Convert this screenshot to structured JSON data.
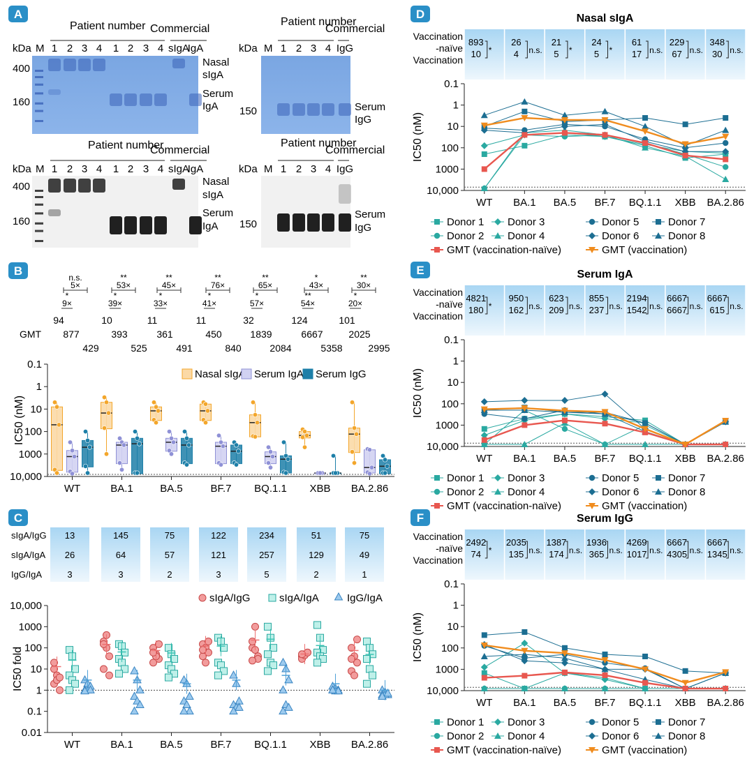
{
  "panel_labels": {
    "A": "A",
    "B": "B",
    "C": "C",
    "D": "D",
    "E": "E",
    "F": "F"
  },
  "gels": {
    "patient_number": "Patient number",
    "commercial": "Commercial",
    "kda": "kDa",
    "marker": "M",
    "lanes_iga": [
      "1",
      "2",
      "3",
      "4",
      "1",
      "2",
      "3",
      "4",
      "sIgA",
      "IgA"
    ],
    "lanes_igg": [
      "1",
      "2",
      "3",
      "4",
      "IgG"
    ],
    "mw_iga": [
      "400",
      "160"
    ],
    "mw_igg": [
      "150"
    ],
    "band_labels_iga": [
      "Nasal",
      "sIgA",
      "Serum",
      "IgA"
    ],
    "band_labels_igg": [
      "Serum",
      "IgG"
    ]
  },
  "colors": {
    "nasal": "#f3a62b",
    "serum_iga": "#8f91d6",
    "serum_igg": "#1d7fa8",
    "gel_blue": "#7fa9e0",
    "gel_dark": "#141414",
    "donor_a": "#2aa9a1",
    "donor_b": "#1c6e92",
    "gmt_naive": "#e8574f",
    "gmt_vacc": "#f08c1e",
    "ratio_red": "#ee7070",
    "ratio_teal": "#3cc4b4",
    "ratio_blue": "#4fa1d8"
  },
  "variants": [
    "WT",
    "BA.1",
    "BA.5",
    "BF.7",
    "BQ.1.1",
    "XBB",
    "BA.2.86"
  ],
  "panel_b": {
    "gmt_label": "GMT",
    "top_ratio": [
      "5×",
      "53×",
      "45×",
      "76×",
      "65×",
      "43×",
      "30×"
    ],
    "top_sig": [
      "n.s.",
      "**",
      "**",
      "**",
      "**",
      "*",
      "**"
    ],
    "bottom_ratio": [
      "9×",
      "39×",
      "33×",
      "41×",
      "57×",
      "54×",
      "20×"
    ],
    "bottom_sig": [
      "*",
      "*",
      "*",
      "*",
      "*",
      "**",
      "*"
    ],
    "gmt_nasal": [
      "94",
      "10",
      "11",
      "11",
      "32",
      "124",
      "101"
    ],
    "gmt_iga": [
      "877",
      "393",
      "361",
      "450",
      "1839",
      "6667",
      "2025"
    ],
    "gmt_igg": [
      "429",
      "525",
      "491",
      "840",
      "2084",
      "5358",
      "2995"
    ],
    "ylabel": "IC50 (nM)",
    "ticks": [
      "0.1",
      "1",
      "10",
      "100",
      "1000",
      "10,000"
    ],
    "legend": [
      "Nasal sIgA",
      "Serum IgA",
      "Serum IgG"
    ]
  },
  "panel_c": {
    "row_labels": [
      "sIgA/IgG",
      "sIgA/IgA",
      "IgG/IgA"
    ],
    "values": [
      [
        "13",
        "145",
        "75",
        "122",
        "234",
        "51",
        "75"
      ],
      [
        "26",
        "64",
        "57",
        "121",
        "257",
        "129",
        "49"
      ],
      [
        "3",
        "3",
        "2",
        "3",
        "5",
        "2",
        "1"
      ]
    ],
    "ylabel": "IC50 fold",
    "ticks": [
      "10,000",
      "1000",
      "100",
      "10",
      "1",
      "0.1",
      "0.01"
    ],
    "legend": [
      "sIgA/IgG",
      "sIgA/IgA",
      "IgG/IgA"
    ]
  },
  "chart_data": [
    {
      "type": "box",
      "title": "",
      "categories": [
        "WT",
        "BA.1",
        "BA.5",
        "BF.7",
        "BQ.1.1",
        "XBB",
        "BA.2.86"
      ],
      "ylabel": "IC50 (nM)",
      "ylim": [
        0.1,
        10000
      ],
      "y_scale": "log",
      "y_inverted": true,
      "series": [
        {
          "name": "Nasal sIgA",
          "median": [
            50,
            15,
            12,
            12,
            40,
            150,
            130
          ],
          "q1": [
            8,
            5,
            8,
            6,
            18,
            100,
            70
          ],
          "q3": [
            5000,
            70,
            30,
            30,
            160,
            180,
            800
          ],
          "min": [
            5,
            3,
            5,
            5,
            5,
            80,
            5
          ],
          "max": [
            7000,
            1000,
            40,
            40,
            170,
            500,
            2500
          ]
        },
        {
          "name": "Serum IgA",
          "median": [
            1300,
            400,
            300,
            450,
            1300,
            7000,
            4000
          ],
          "q1": [
            700,
            300,
            200,
            300,
            800,
            7000,
            650
          ],
          "q3": [
            6000,
            2500,
            700,
            2500,
            2500,
            7000,
            6500
          ],
          "min": [
            300,
            200,
            100,
            150,
            500,
            7000,
            600
          ],
          "max": [
            7500,
            5000,
            1000,
            3000,
            4000,
            7000,
            7500
          ]
        },
        {
          "name": "Serum IgG",
          "median": [
            500,
            350,
            400,
            750,
            1700,
            7000,
            3500
          ],
          "q1": [
            250,
            200,
            200,
            400,
            1200,
            7000,
            1800
          ],
          "q3": [
            3500,
            7000,
            2500,
            2500,
            6500,
            7000,
            7000
          ],
          "min": [
            100,
            100,
            100,
            300,
            300,
            1200,
            1200
          ],
          "max": [
            7000,
            7000,
            3000,
            3000,
            7000,
            7000,
            7000
          ]
        }
      ]
    },
    {
      "type": "scatter",
      "title": "",
      "categories": [
        "WT",
        "BA.1",
        "BA.5",
        "BF.7",
        "BQ.1.1",
        "XBB",
        "BA.2.86"
      ],
      "ylabel": "IC50 fold",
      "ylim": [
        0.01,
        10000
      ],
      "y_scale": "log",
      "series": [
        {
          "name": "sIgA/IgG",
          "mean": [
            13,
            145,
            75,
            122,
            234,
            51,
            75
          ],
          "values": [
            [
              10,
              5,
              1,
              2,
              3,
              4,
              20
            ],
            [
              200,
              100,
              40,
              10,
              400,
              5,
              150
            ],
            [
              100,
              50,
              30,
              20,
              40,
              150,
              60
            ],
            [
              150,
              100,
              60,
              40,
              20,
              200,
              80
            ],
            [
              100,
              80,
              40,
              200,
              1000,
              30,
              25
            ],
            [
              40,
              50,
              60,
              30,
              45,
              60,
              50
            ],
            [
              100,
              40,
              20,
              8,
              5,
              250,
              30
            ]
          ]
        },
        {
          "name": "sIgA/IgA",
          "mean": [
            26,
            64,
            57,
            121,
            257,
            129,
            49
          ],
          "values": [
            [
              80,
              40,
              10,
              5,
              3,
              2,
              1
            ],
            [
              150,
              120,
              60,
              30,
              20,
              10,
              6
            ],
            [
              100,
              50,
              30,
              15,
              10,
              6,
              4
            ],
            [
              300,
              200,
              100,
              20,
              15,
              8,
              5
            ],
            [
              1000,
              300,
              100,
              50,
              20,
              15,
              8
            ],
            [
              1200,
              300,
              80,
              60,
              40,
              30,
              20
            ],
            [
              200,
              100,
              50,
              30,
              10,
              5,
              2
            ]
          ]
        },
        {
          "name": "IgG/IgA",
          "mean": [
            3,
            3,
            2,
            3,
            5,
            2,
            1
          ],
          "values": [
            [
              3,
              2,
              1.5,
              1,
              1,
              1,
              0.9
            ],
            [
              8,
              3,
              1,
              0.5,
              0.3,
              0.2,
              0.1
            ],
            [
              3,
              2,
              0.5,
              0.3,
              0.2,
              0.1,
              0.1
            ],
            [
              5,
              2,
              0.3,
              0.2,
              0.15,
              0.15,
              0.1
            ],
            [
              20,
              10,
              3,
              1,
              0.2,
              0.15,
              0.1
            ],
            [
              1.5,
              1.2,
              1,
              1,
              0.9,
              0.9,
              1
            ],
            [
              1,
              0.8,
              0.6,
              0.6,
              0.6,
              0.7,
              0.5
            ]
          ]
        }
      ]
    },
    {
      "type": "line",
      "title": "Nasal sIgA",
      "categories": [
        "WT",
        "BA.1",
        "BA.5",
        "BF.7",
        "BQ.1.1",
        "XBB",
        "BA.2.86"
      ],
      "ylabel": "IC50 (nM)",
      "ylim": [
        0.1,
        10000
      ],
      "y_scale": "log",
      "y_inverted": true,
      "row_labels": [
        "Vaccination",
        "-naïve",
        "Vaccination"
      ],
      "naive_gmt": [
        "893",
        "26",
        "21",
        "24",
        "61",
        "229",
        "348"
      ],
      "vacc_gmt": [
        "10",
        "4",
        "5",
        "5",
        "17",
        "67",
        "30"
      ],
      "sig": [
        "*",
        "n.s.",
        "*",
        "*",
        "n.s.",
        "n.s.",
        "n.s."
      ],
      "series": [
        {
          "name": "Donor 1",
          "values": [
            200,
            80,
            25,
            30,
            80,
            300,
            200
          ]
        },
        {
          "name": "Donor 2",
          "values": [
            8000,
            25,
            30,
            25,
            60,
            200,
            800
          ]
        },
        {
          "name": "Donor 3",
          "values": [
            80,
            25,
            20,
            30,
            70,
            150,
            180
          ]
        },
        {
          "name": "Donor 4",
          "values": [
            8000,
            20,
            15,
            25,
            100,
            250,
            3000
          ]
        },
        {
          "name": "Donor 5",
          "values": [
            12,
            15,
            8,
            10,
            40,
            100,
            60
          ]
        },
        {
          "name": "Donor 6",
          "values": [
            15,
            20,
            10,
            8,
            50,
            150,
            150
          ]
        },
        {
          "name": "Donor 7",
          "values": [
            10,
            2,
            6,
            5,
            4,
            8,
            4
          ]
        },
        {
          "name": "Donor 8",
          "values": [
            3,
            0.7,
            3,
            2,
            10,
            80,
            15
          ]
        },
        {
          "name": "GMT (vaccination-naïve)",
          "values": [
            1000,
            25,
            20,
            25,
            60,
            230,
            350
          ]
        },
        {
          "name": "GMT (vaccination)",
          "values": [
            9,
            4,
            5,
            5,
            17,
            67,
            30
          ]
        }
      ]
    },
    {
      "type": "line",
      "title": "Serum IgA",
      "categories": [
        "WT",
        "BA.1",
        "BA.5",
        "BF.7",
        "BQ.1.1",
        "XBB",
        "BA.2.86"
      ],
      "ylabel": "IC50 (nM)",
      "ylim": [
        0.1,
        10000
      ],
      "y_scale": "log",
      "y_inverted": true,
      "row_labels": [
        "Vaccination",
        "-naïve",
        "Vaccination"
      ],
      "naive_gmt": [
        "4821",
        "950",
        "623",
        "855",
        "2194",
        "6667",
        "6667"
      ],
      "vacc_gmt": [
        "180",
        "162",
        "209",
        "237",
        "1542",
        "6667",
        "615"
      ],
      "sig": [
        "*",
        "n.s.",
        "n.s.",
        "n.s.",
        "n.s.",
        "n.s.",
        "n.s."
      ],
      "series": [
        {
          "name": "Donor 1",
          "values": [
            1500,
            500,
            300,
            400,
            600,
            8000,
            700
          ]
        },
        {
          "name": "Donor 2",
          "values": [
            8000,
            200,
            1500,
            8000,
            1000,
            8000,
            8000
          ]
        },
        {
          "name": "Donor 3",
          "values": [
            3000,
            600,
            300,
            500,
            800,
            8000,
            8000
          ]
        },
        {
          "name": "Donor 4",
          "values": [
            8000,
            8000,
            800,
            8000,
            8000,
            8000,
            8000
          ]
        },
        {
          "name": "Donor 5",
          "values": [
            300,
            500,
            200,
            300,
            800,
            8000,
            700
          ]
        },
        {
          "name": "Donor 6",
          "values": [
            80,
            70,
            70,
            35,
            1500,
            8000,
            700
          ]
        },
        {
          "name": "Donor 7",
          "values": [
            200,
            150,
            250,
            250,
            800,
            8000,
            700
          ]
        },
        {
          "name": "Donor 8",
          "values": [
            200,
            200,
            250,
            300,
            2000,
            8000,
            700
          ]
        },
        {
          "name": "GMT (vaccination-naïve)",
          "values": [
            5000,
            1000,
            600,
            850,
            2200,
            8000,
            8000
          ]
        },
        {
          "name": "GMT (vaccination)",
          "values": [
            180,
            160,
            210,
            240,
            1500,
            8000,
            620
          ]
        }
      ]
    },
    {
      "type": "line",
      "title": "Serum IgG",
      "categories": [
        "WT",
        "BA.1",
        "BA.5",
        "BF.7",
        "BQ.1.1",
        "XBB",
        "BA.2.86"
      ],
      "ylabel": "IC50 (nM)",
      "ylim": [
        0.1,
        10000
      ],
      "y_scale": "log",
      "y_inverted": true,
      "row_labels": [
        "Vaccination",
        "-naïve",
        "Vaccination"
      ],
      "naive_gmt": [
        "2492",
        "2035",
        "1387",
        "1936",
        "4269",
        "6667",
        "6667"
      ],
      "vacc_gmt": [
        "74",
        "135",
        "174",
        "365",
        "1017",
        "4305",
        "1345"
      ],
      "sig": [
        "*",
        "n.s.",
        "n.s.",
        "n.s.",
        "n.s.",
        "n.s.",
        "n.s."
      ],
      "series": [
        {
          "name": "Donor 1",
          "values": [
            1500,
            8000,
            1500,
            2500,
            8000,
            8000,
            1500
          ]
        },
        {
          "name": "Donor 2",
          "values": [
            8000,
            8000,
            8000,
            8000,
            8000,
            8000,
            8000
          ]
        },
        {
          "name": "Donor 3",
          "values": [
            800,
            60,
            1500,
            3000,
            8000,
            8000,
            8000
          ]
        },
        {
          "name": "Donor 4",
          "values": [
            8000,
            8000,
            8000,
            8000,
            8000,
            8000,
            8000
          ]
        },
        {
          "name": "Donor 5",
          "values": [
            80,
            300,
            200,
            500,
            900,
            8000,
            1500
          ]
        },
        {
          "name": "Donor 6",
          "values": [
            70,
            400,
            500,
            1000,
            1000,
            8000,
            1500
          ]
        },
        {
          "name": "Donor 7",
          "values": [
            25,
            18,
            100,
            200,
            250,
            1200,
            1500
          ]
        },
        {
          "name": "Donor 8",
          "values": [
            250,
            200,
            300,
            1000,
            3000,
            8000,
            1500
          ]
        },
        {
          "name": "GMT (vaccination-naïve)",
          "values": [
            2500,
            2000,
            1400,
            1900,
            4300,
            8000,
            8000
          ]
        },
        {
          "name": "GMT (vaccination)",
          "values": [
            75,
            135,
            175,
            365,
            1000,
            4300,
            1350
          ]
        }
      ]
    }
  ]
}
